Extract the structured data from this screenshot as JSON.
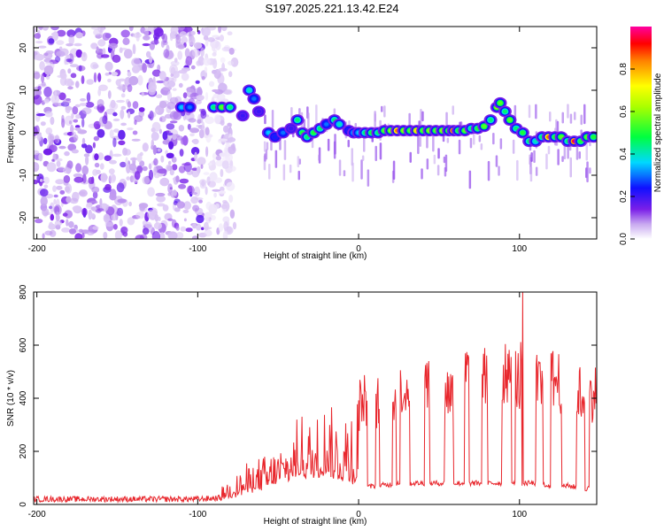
{
  "figure_title": "S197.2025.221.13.42.E24",
  "colors": {
    "snr_line": "#e8262c",
    "axis": "#000000",
    "background": "#ffffff"
  },
  "chart_data": [
    {
      "type": "heatmap",
      "title": "S197.2025.221.13.42.E24",
      "xlabel": "Height of straight line (km)",
      "ylabel": "Frequency (Hz)",
      "xlim": [
        -202,
        148
      ],
      "ylim": [
        -25,
        25
      ],
      "x_ticks": [
        -200,
        -100,
        0,
        100
      ],
      "x_tick_labels": [
        "-200",
        "-100",
        "0",
        "100"
      ],
      "y_ticks": [
        -20,
        -10,
        0,
        10,
        20
      ],
      "y_tick_labels": [
        "-20",
        "-10",
        "0",
        "10",
        "20"
      ],
      "colorbar": {
        "label": "Normalized spectral amplitude",
        "range": [
          0,
          1
        ],
        "ticks": [
          0,
          0.2,
          0.4,
          0.6,
          0.8
        ],
        "tick_labels": [
          "0.0",
          "0.2",
          "0.4",
          "0.6",
          "0.8"
        ]
      },
      "noise_region": {
        "x_range": [
          -202,
          -88
        ],
        "freq_range": [
          -25,
          25
        ]
      },
      "ridge": [
        [
          -110,
          6,
          0.35
        ],
        [
          -105,
          6,
          0.3
        ],
        [
          -90,
          6,
          0.45
        ],
        [
          -85,
          6,
          0.55
        ],
        [
          -80,
          6,
          0.45
        ],
        [
          -72,
          4,
          0.2
        ],
        [
          -68,
          10,
          0.4
        ],
        [
          -65,
          8,
          0.3
        ],
        [
          -62,
          5,
          0.2
        ],
        [
          -56,
          0,
          0.35
        ],
        [
          -52,
          -1,
          0.25
        ],
        [
          -47,
          0,
          0.3
        ],
        [
          -42,
          1,
          0.2
        ],
        [
          -38,
          3,
          0.45
        ],
        [
          -35,
          0,
          0.5
        ],
        [
          -32,
          -1,
          0.45
        ],
        [
          -28,
          0,
          0.5
        ],
        [
          -24,
          1,
          0.45
        ],
        [
          -20,
          2,
          0.3
        ],
        [
          -15,
          3,
          0.45
        ],
        [
          -12,
          2,
          0.4
        ],
        [
          -6,
          0.5,
          0.25
        ],
        [
          -3,
          0,
          0.35
        ],
        [
          0,
          0,
          0.35
        ],
        [
          4,
          0,
          0.45
        ],
        [
          8,
          0,
          0.5
        ],
        [
          12,
          0,
          0.45
        ],
        [
          16,
          0.5,
          0.55
        ],
        [
          20,
          0.5,
          0.6
        ],
        [
          24,
          0.5,
          0.85
        ],
        [
          28,
          0.5,
          0.6
        ],
        [
          32,
          0.5,
          0.55
        ],
        [
          36,
          0.5,
          0.75
        ],
        [
          40,
          0.5,
          0.55
        ],
        [
          44,
          0.5,
          0.6
        ],
        [
          48,
          0.5,
          0.55
        ],
        [
          52,
          0.5,
          0.6
        ],
        [
          56,
          0.5,
          0.55
        ],
        [
          59,
          0.5,
          0.95
        ],
        [
          62,
          0.5,
          0.5
        ],
        [
          66,
          0.5,
          0.55
        ],
        [
          70,
          1,
          0.45
        ],
        [
          74,
          1,
          0.5
        ],
        [
          78,
          1.5,
          0.55
        ],
        [
          82,
          3,
          0.45
        ],
        [
          86,
          6,
          0.6
        ],
        [
          88,
          7,
          0.55
        ],
        [
          91,
          5,
          0.45
        ],
        [
          94,
          3,
          0.55
        ],
        [
          98,
          1,
          0.45
        ],
        [
          102,
          0,
          0.5
        ],
        [
          106,
          -2,
          0.45
        ],
        [
          110,
          -2,
          0.4
        ],
        [
          114,
          -1,
          0.45
        ],
        [
          118,
          -1,
          0.85
        ],
        [
          122,
          -1,
          0.5
        ],
        [
          126,
          -1,
          0.55
        ],
        [
          130,
          -2,
          0.45
        ],
        [
          134,
          -2,
          0.95
        ],
        [
          138,
          -2,
          0.5
        ],
        [
          142,
          -1,
          0.55
        ],
        [
          146,
          -1,
          0.5
        ]
      ]
    },
    {
      "type": "line",
      "xlabel": "Height of straight line (km)",
      "ylabel": "SNR (10 * v/v)",
      "xlim": [
        -202,
        148
      ],
      "ylim": [
        0,
        800
      ],
      "x_ticks": [
        -200,
        -100,
        0,
        100
      ],
      "x_tick_labels": [
        "-200",
        "-100",
        "0",
        "100"
      ],
      "y_ticks": [
        0,
        200,
        400,
        600,
        800
      ],
      "y_tick_labels": [
        "0",
        "200",
        "400",
        "600",
        "800"
      ],
      "trace_note": "Noisy trace; baseline ~20 at the left, rising after -85 km to switching ~80 / ~500 levels, with a spike to ~800 near 102 km.",
      "x": [
        -202,
        -150,
        -100,
        -85,
        -70,
        -55,
        -45,
        -40,
        -35,
        -30,
        -25,
        -20,
        -15,
        -10,
        -5,
        0,
        10,
        20,
        30,
        40,
        50,
        60,
        70,
        80,
        90,
        100,
        102,
        110,
        120,
        130,
        140,
        148
      ],
      "base": [
        20,
        20,
        20,
        25,
        45,
        70,
        90,
        100,
        110,
        100,
        110,
        120,
        100,
        90,
        90,
        60,
        70,
        75,
        80,
        80,
        80,
        80,
        80,
        80,
        80,
        80,
        80,
        80,
        70,
        70,
        60,
        60
      ],
      "peak": [
        35,
        35,
        35,
        70,
        150,
        200,
        260,
        300,
        350,
        330,
        360,
        420,
        360,
        400,
        480,
        480,
        470,
        480,
        560,
        600,
        530,
        540,
        620,
        590,
        610,
        580,
        800,
        570,
        590,
        600,
        500,
        520
      ]
    }
  ]
}
